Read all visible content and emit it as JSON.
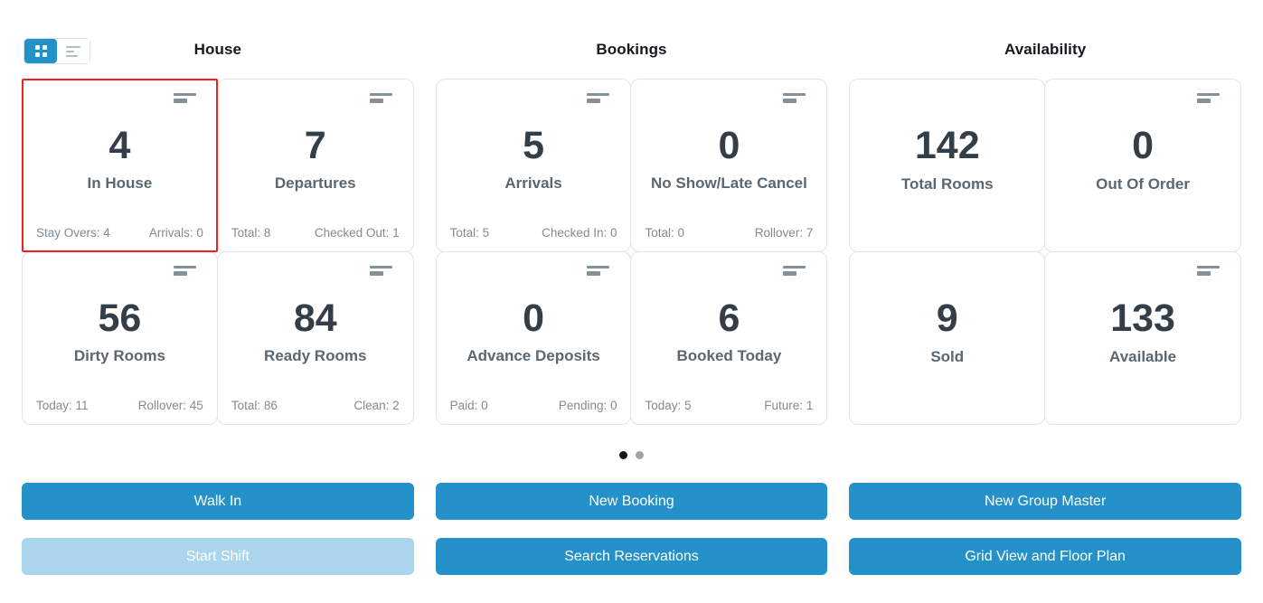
{
  "view_toggle": {
    "grid_label": "grid-view",
    "list_label": "list-view",
    "active": "grid-view"
  },
  "columns": [
    {
      "title": "House",
      "cards": [
        {
          "value": "4",
          "label": "In House",
          "selected": true,
          "footer_left": "Stay Overs: 4",
          "footer_right": "Arrivals: 0"
        },
        {
          "value": "7",
          "label": "Departures",
          "selected": false,
          "footer_left": "Total: 8",
          "footer_right": "Checked Out: 1"
        },
        {
          "value": "56",
          "label": "Dirty Rooms",
          "selected": false,
          "footer_left": "Today: 11",
          "footer_right": "Rollover: 45"
        },
        {
          "value": "84",
          "label": "Ready Rooms",
          "selected": false,
          "footer_left": "Total: 86",
          "footer_right": "Clean: 2"
        }
      ]
    },
    {
      "title": "Bookings",
      "cards": [
        {
          "value": "5",
          "label": "Arrivals",
          "selected": false,
          "footer_left": "Total: 5",
          "footer_right": "Checked In: 0"
        },
        {
          "value": "0",
          "label": "No Show/Late Cancel",
          "selected": false,
          "footer_left": "Total: 0",
          "footer_right": "Rollover: 7"
        },
        {
          "value": "0",
          "label": "Advance Deposits",
          "selected": false,
          "footer_left": "Paid: 0",
          "footer_right": "Pending: 0"
        },
        {
          "value": "6",
          "label": "Booked Today",
          "selected": false,
          "footer_left": "Today: 5",
          "footer_right": "Future: 1"
        }
      ]
    },
    {
      "title": "Availability",
      "cards": [
        {
          "value": "142",
          "label": "Total Rooms",
          "selected": false
        },
        {
          "value": "0",
          "label": "Out Of Order",
          "selected": false
        },
        {
          "value": "9",
          "label": "Sold",
          "selected": false
        },
        {
          "value": "133",
          "label": "Available",
          "selected": false
        }
      ]
    }
  ],
  "pagination": {
    "dot_count": 2,
    "active_index": 0
  },
  "buttons": {
    "walk_in": "Walk In",
    "start_shift": "Start Shift",
    "start_shift_disabled": true,
    "new_booking": "New Booking",
    "search_reservations": "Search Reservations",
    "new_group_master": "New Group Master",
    "grid_view_floor_plan": "Grid View and Floor Plan"
  },
  "colors": {
    "accent_blue": "#2492c8",
    "disabled_blue": "#aad5ec",
    "selected_border_red": "#ee2125",
    "card_border": "#e3e4e6",
    "number_text": "#333e48",
    "label_text": "#5a6771",
    "footer_text": "#7e8b95"
  }
}
